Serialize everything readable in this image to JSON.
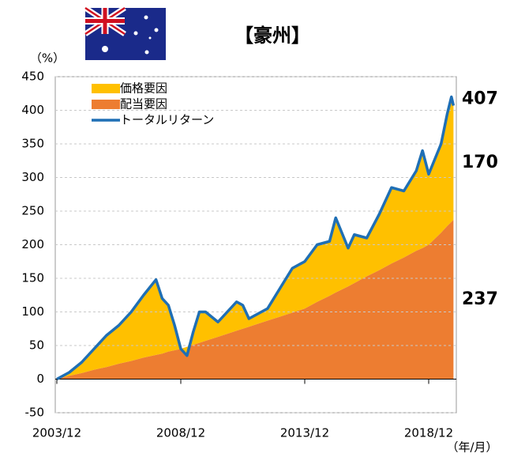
{
  "chart_data": {
    "type": "stacked_area_line",
    "title": "【豪州】",
    "y_axis_label": "（%）",
    "x_axis_label": "（年/月）",
    "x": [
      "2003/12",
      "2004/06",
      "2004/12",
      "2005/06",
      "2005/12",
      "2006/06",
      "2006/12",
      "2007/06",
      "2007/12",
      "2008/03",
      "2008/06",
      "2008/09",
      "2008/12",
      "2009/03",
      "2009/06",
      "2009/09",
      "2009/12",
      "2010/06",
      "2010/12",
      "2011/03",
      "2011/06",
      "2011/09",
      "2011/12",
      "2012/06",
      "2012/12",
      "2013/06",
      "2013/12",
      "2014/06",
      "2014/12",
      "2015/03",
      "2015/09",
      "2015/12",
      "2016/06",
      "2016/12",
      "2017/06",
      "2017/12",
      "2018/06",
      "2018/09",
      "2018/12",
      "2019/06",
      "2019/09",
      "2019/11",
      "2019/12"
    ],
    "series": [
      {
        "name": "価格要因",
        "color": "#FFC000",
        "stack": true,
        "values": [
          0,
          5,
          16,
          31,
          47,
          57,
          73,
          93,
          112,
          82,
          69,
          37,
          0,
          -13,
          19,
          46,
          43,
          22,
          36,
          43,
          35,
          12,
          14,
          18,
          42,
          66,
          70,
          85,
          81,
          111,
          57,
          72,
          57,
          83,
          113,
          99,
          119,
          145,
          105,
          132,
          167,
          186,
          170
        ]
      },
      {
        "name": "配当要因",
        "color": "#ED7D31",
        "stack": true,
        "values": [
          0,
          5,
          9,
          14,
          18,
          23,
          27,
          32,
          36,
          38,
          41,
          43,
          45,
          48,
          51,
          54,
          57,
          63,
          69,
          72,
          75,
          78,
          81,
          87,
          93,
          99,
          105,
          115,
          124,
          129,
          138,
          143,
          153,
          162,
          172,
          181,
          191,
          195,
          200,
          218,
          228,
          234,
          237
        ]
      },
      {
        "name": "トータルリターン",
        "color": "#1F6FB5",
        "stack": false,
        "values": [
          0,
          10,
          25,
          45,
          65,
          80,
          100,
          125,
          148,
          120,
          110,
          80,
          45,
          35,
          70,
          100,
          100,
          85,
          105,
          115,
          110,
          90,
          95,
          105,
          135,
          165,
          175,
          200,
          205,
          240,
          195,
          215,
          210,
          245,
          285,
          280,
          310,
          340,
          305,
          350,
          395,
          420,
          407
        ]
      }
    ],
    "end_label_colors": [
      "#FFC000",
      "#ED7D31",
      "#4472C4"
    ],
    "ylim": [
      -50,
      450
    ],
    "yticks": [
      -50,
      0,
      50,
      100,
      150,
      200,
      250,
      300,
      350,
      400,
      450
    ],
    "xticks": [
      "2003/12",
      "2008/12",
      "2013/12",
      "2018/12"
    ],
    "grid": true
  }
}
